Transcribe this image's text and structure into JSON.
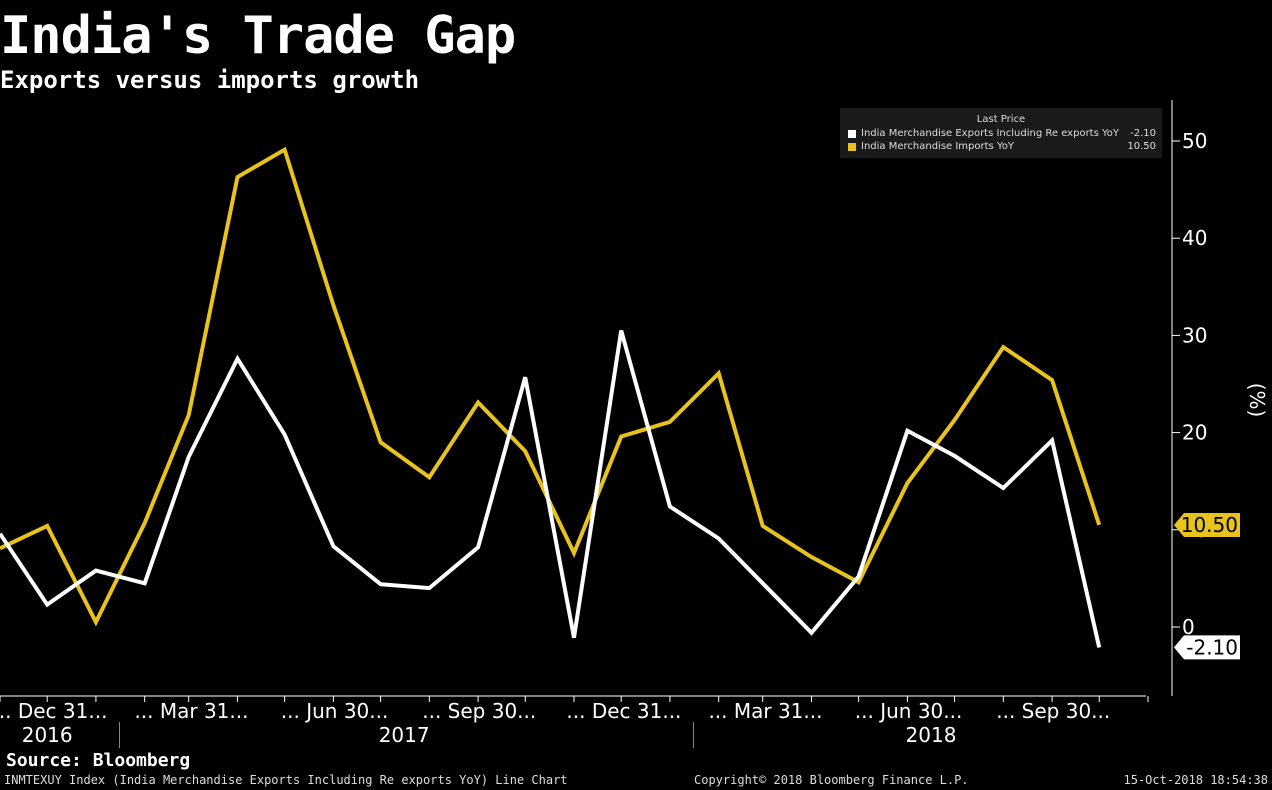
{
  "chart_data": {
    "type": "line",
    "title": "India's Trade Gap",
    "subtitle": "Exports versus imports growth",
    "ylabel": "(%)",
    "ylim": [
      -7,
      53
    ],
    "yticks": [
      0,
      10,
      20,
      30,
      40,
      50
    ],
    "yaxis_position": "right",
    "grid": false,
    "legend_position": "top-right",
    "legend_header": "Last Price",
    "x": [
      "2016-10-31",
      "2016-11-30",
      "2016-12-31",
      "2017-01-31",
      "2017-02-28",
      "2017-03-31",
      "2017-04-30",
      "2017-05-31",
      "2017-06-30",
      "2017-07-31",
      "2017-08-31",
      "2017-09-30",
      "2017-10-31",
      "2017-11-30",
      "2017-12-31",
      "2018-01-31",
      "2018-02-28",
      "2018-03-31",
      "2018-04-30",
      "2018-05-31",
      "2018-06-30",
      "2018-07-31",
      "2018-08-31",
      "2018-09-30"
    ],
    "xlim": [
      "2016-10-31",
      "2018-10-31"
    ],
    "month_ticks": [
      "2016-10-31",
      "2016-11-30",
      "2016-12-31",
      "2017-01-31",
      "2017-02-28",
      "2017-03-31",
      "2017-04-30",
      "2017-05-31",
      "2017-06-30",
      "2017-07-31",
      "2017-08-31",
      "2017-09-30",
      "2017-10-31",
      "2017-11-30",
      "2017-12-31",
      "2018-01-31",
      "2018-02-28",
      "2018-03-31",
      "2018-04-30",
      "2018-05-31",
      "2018-06-30",
      "2018-07-31",
      "2018-08-31",
      "2018-09-30",
      "2018-10-31"
    ],
    "quarter_labels": [
      {
        "date": "2016-12-31",
        "label": "... Dec 31..."
      },
      {
        "date": "2017-03-31",
        "label": "... Mar 31..."
      },
      {
        "date": "2017-06-30",
        "label": "... Jun 30..."
      },
      {
        "date": "2017-09-30",
        "label": "... Sep 30..."
      },
      {
        "date": "2017-12-31",
        "label": "... Dec 31..."
      },
      {
        "date": "2018-03-31",
        "label": "... Mar 31..."
      },
      {
        "date": "2018-06-30",
        "label": "... Jun 30..."
      },
      {
        "date": "2018-09-30",
        "label": "... Sep 30..."
      }
    ],
    "year_labels": [
      {
        "label": "2016",
        "date": "2016-11-30"
      },
      {
        "label": "2017",
        "date": "2017-07-15"
      },
      {
        "label": "2018",
        "date": "2018-06-15"
      }
    ],
    "year_separators": [
      "2017-01-15",
      "2018-01-15"
    ],
    "series": [
      {
        "name": "India Merchandise Exports Including Re exports YoY",
        "color": "#ffffff",
        "last_price": "-2.10",
        "values": [
          9.6,
          2.3,
          5.8,
          4.5,
          17.5,
          27.6,
          19.8,
          8.3,
          4.4,
          4.0,
          8.2,
          25.7,
          -1.1,
          30.5,
          12.4,
          9.1,
          4.5,
          -0.6,
          5.2,
          20.2,
          17.6,
          14.3,
          19.2,
          -2.1
        ]
      },
      {
        "name": "India Merchandise Imports YoY",
        "color": "#e8c31e",
        "last_price": "10.50",
        "values": [
          8.1,
          10.4,
          0.5,
          10.7,
          21.8,
          46.3,
          49.1,
          33.1,
          19.0,
          15.4,
          23.1,
          18.1,
          7.6,
          19.6,
          21.1,
          26.1,
          10.4,
          7.2,
          4.6,
          14.8,
          21.3,
          28.8,
          25.4,
          10.5
        ]
      }
    ]
  },
  "footer": {
    "source": "Source: Bloomberg",
    "description": "INMTEXUY Index (India Merchandise Exports Including Re exports YoY) Line Chart",
    "copyright": "Copyright© 2018 Bloomberg Finance L.P.",
    "timestamp": "15-Oct-2018 18:54:38"
  }
}
